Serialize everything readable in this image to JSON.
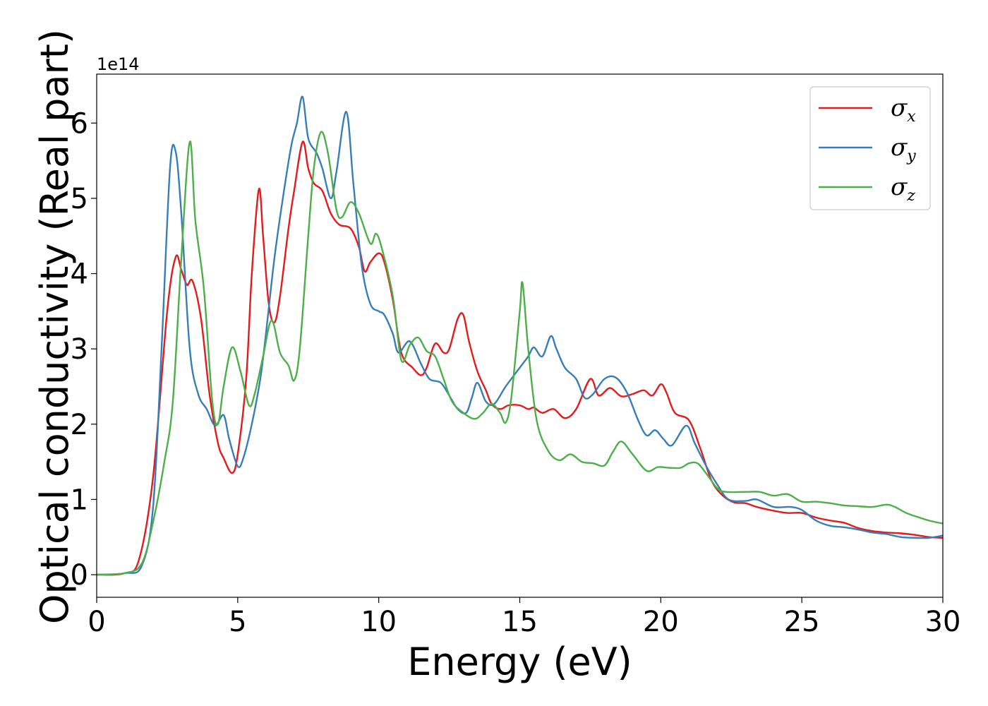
{
  "chart_data": {
    "type": "line",
    "title": "",
    "xlabel": "Energy (eV)",
    "ylabel": "Optical conductivity (Real part)",
    "y_offset_text": "1e14",
    "xlim": [
      0,
      30
    ],
    "ylim": [
      -0.3,
      6.65
    ],
    "x_ticks": [
      0,
      5,
      10,
      15,
      20,
      25,
      30
    ],
    "y_ticks": [
      0,
      1,
      2,
      3,
      4,
      5,
      6
    ],
    "grid": false,
    "legend_position": "top-right",
    "series": [
      {
        "name": "σx",
        "symbol": "σ",
        "subscript": "x",
        "color": "#e41a1c",
        "points": [
          [
            0,
            0
          ],
          [
            1,
            0.02
          ],
          [
            1.5,
            0.2
          ],
          [
            2,
            1.3
          ],
          [
            2.5,
            3.5
          ],
          [
            2.8,
            4.22
          ],
          [
            3,
            4.05
          ],
          [
            3.2,
            3.85
          ],
          [
            3.4,
            3.9
          ],
          [
            3.7,
            3.4
          ],
          [
            4,
            2.4
          ],
          [
            4.3,
            1.75
          ],
          [
            4.5,
            1.55
          ],
          [
            4.8,
            1.35
          ],
          [
            5,
            1.6
          ],
          [
            5.3,
            2.6
          ],
          [
            5.5,
            4.0
          ],
          [
            5.75,
            5.12
          ],
          [
            5.9,
            4.5
          ],
          [
            6.1,
            3.6
          ],
          [
            6.3,
            3.35
          ],
          [
            6.5,
            3.7
          ],
          [
            6.8,
            4.6
          ],
          [
            7.0,
            5.1
          ],
          [
            7.3,
            5.75
          ],
          [
            7.5,
            5.4
          ],
          [
            7.7,
            5.2
          ],
          [
            8,
            5.1
          ],
          [
            8.3,
            4.8
          ],
          [
            8.6,
            4.65
          ],
          [
            9,
            4.6
          ],
          [
            9.3,
            4.35
          ],
          [
            9.5,
            4.03
          ],
          [
            9.7,
            4.15
          ],
          [
            10,
            4.27
          ],
          [
            10.2,
            4.15
          ],
          [
            10.5,
            3.65
          ],
          [
            10.8,
            2.95
          ],
          [
            11.2,
            2.75
          ],
          [
            11.5,
            2.65
          ],
          [
            11.7,
            2.75
          ],
          [
            12,
            3.07
          ],
          [
            12.3,
            2.95
          ],
          [
            12.5,
            3.0
          ],
          [
            12.8,
            3.4
          ],
          [
            13,
            3.45
          ],
          [
            13.2,
            3.1
          ],
          [
            13.5,
            2.7
          ],
          [
            13.8,
            2.45
          ],
          [
            14,
            2.27
          ],
          [
            14.3,
            2.2
          ],
          [
            14.6,
            2.25
          ],
          [
            15,
            2.25
          ],
          [
            15.3,
            2.2
          ],
          [
            15.5,
            2.22
          ],
          [
            15.8,
            2.15
          ],
          [
            16.2,
            2.2
          ],
          [
            16.6,
            2.08
          ],
          [
            17,
            2.2
          ],
          [
            17.5,
            2.6
          ],
          [
            17.8,
            2.38
          ],
          [
            18.2,
            2.48
          ],
          [
            18.6,
            2.37
          ],
          [
            19,
            2.4
          ],
          [
            19.4,
            2.45
          ],
          [
            19.7,
            2.38
          ],
          [
            20,
            2.53
          ],
          [
            20.2,
            2.42
          ],
          [
            20.5,
            2.15
          ],
          [
            21,
            2.05
          ],
          [
            21.4,
            1.68
          ],
          [
            21.8,
            1.25
          ],
          [
            22.2,
            1.05
          ],
          [
            22.6,
            0.96
          ],
          [
            23,
            0.95
          ],
          [
            23.4,
            0.9
          ],
          [
            24,
            0.85
          ],
          [
            24.5,
            0.82
          ],
          [
            25,
            0.82
          ],
          [
            25.5,
            0.76
          ],
          [
            26,
            0.72
          ],
          [
            26.5,
            0.69
          ],
          [
            27,
            0.62
          ],
          [
            27.5,
            0.58
          ],
          [
            28,
            0.56
          ],
          [
            28.5,
            0.55
          ],
          [
            29,
            0.53
          ],
          [
            29.5,
            0.5
          ],
          [
            30,
            0.49
          ]
        ]
      },
      {
        "name": "σy",
        "symbol": "σ",
        "subscript": "y",
        "color": "#377eb8",
        "points": [
          [
            0,
            0
          ],
          [
            1,
            0.02
          ],
          [
            1.6,
            0.12
          ],
          [
            2,
            0.9
          ],
          [
            2.3,
            3.0
          ],
          [
            2.6,
            5.4
          ],
          [
            2.8,
            5.62
          ],
          [
            3,
            4.8
          ],
          [
            3.3,
            3.0
          ],
          [
            3.6,
            2.4
          ],
          [
            3.9,
            2.2
          ],
          [
            4.2,
            1.98
          ],
          [
            4.5,
            2.12
          ],
          [
            4.7,
            1.8
          ],
          [
            5,
            1.44
          ],
          [
            5.2,
            1.55
          ],
          [
            5.5,
            2.0
          ],
          [
            5.8,
            2.6
          ],
          [
            6.0,
            3.2
          ],
          [
            6.3,
            4.2
          ],
          [
            6.6,
            5.0
          ],
          [
            6.9,
            5.7
          ],
          [
            7.1,
            6.0
          ],
          [
            7.3,
            6.35
          ],
          [
            7.5,
            5.8
          ],
          [
            7.8,
            5.6
          ],
          [
            8,
            5.4
          ],
          [
            8.3,
            5.0
          ],
          [
            8.5,
            5.35
          ],
          [
            8.85,
            6.15
          ],
          [
            9.1,
            5.2
          ],
          [
            9.4,
            4.1
          ],
          [
            9.7,
            3.6
          ],
          [
            10,
            3.5
          ],
          [
            10.2,
            3.45
          ],
          [
            10.5,
            3.2
          ],
          [
            10.7,
            2.95
          ],
          [
            11.1,
            3.1
          ],
          [
            11.5,
            2.8
          ],
          [
            11.8,
            2.6
          ],
          [
            12.2,
            2.55
          ],
          [
            12.5,
            2.38
          ],
          [
            12.8,
            2.2
          ],
          [
            13.1,
            2.15
          ],
          [
            13.3,
            2.35
          ],
          [
            13.5,
            2.55
          ],
          [
            13.8,
            2.3
          ],
          [
            14.1,
            2.27
          ],
          [
            14.5,
            2.5
          ],
          [
            15,
            2.75
          ],
          [
            15.3,
            2.9
          ],
          [
            15.5,
            3.02
          ],
          [
            15.8,
            2.9
          ],
          [
            16.1,
            3.17
          ],
          [
            16.3,
            3.0
          ],
          [
            16.6,
            2.75
          ],
          [
            17,
            2.6
          ],
          [
            17.3,
            2.35
          ],
          [
            17.6,
            2.4
          ],
          [
            18,
            2.6
          ],
          [
            18.4,
            2.62
          ],
          [
            18.8,
            2.42
          ],
          [
            19.2,
            2.05
          ],
          [
            19.5,
            1.85
          ],
          [
            19.8,
            1.92
          ],
          [
            20.1,
            1.8
          ],
          [
            20.4,
            1.72
          ],
          [
            20.9,
            1.98
          ],
          [
            21.2,
            1.75
          ],
          [
            21.6,
            1.45
          ],
          [
            22,
            1.2
          ],
          [
            22.4,
            1.0
          ],
          [
            23,
            0.98
          ],
          [
            23.4,
            1.0
          ],
          [
            24,
            0.9
          ],
          [
            24.6,
            0.9
          ],
          [
            25,
            0.86
          ],
          [
            25.5,
            0.72
          ],
          [
            26,
            0.65
          ],
          [
            26.5,
            0.63
          ],
          [
            27,
            0.6
          ],
          [
            27.5,
            0.56
          ],
          [
            28,
            0.54
          ],
          [
            28.5,
            0.5
          ],
          [
            29,
            0.49
          ],
          [
            29.5,
            0.49
          ],
          [
            30,
            0.52
          ]
        ]
      },
      {
        "name": "σz",
        "symbol": "σ",
        "subscript": "z",
        "color": "#4daf4a",
        "points": [
          [
            0,
            0
          ],
          [
            1,
            0.02
          ],
          [
            1.6,
            0.15
          ],
          [
            2,
            0.7
          ],
          [
            2.4,
            1.5
          ],
          [
            2.7,
            2.3
          ],
          [
            3,
            4.2
          ],
          [
            3.3,
            5.75
          ],
          [
            3.5,
            4.7
          ],
          [
            3.8,
            3.8
          ],
          [
            4.1,
            2.3
          ],
          [
            4.3,
            2.0
          ],
          [
            4.5,
            2.5
          ],
          [
            4.8,
            3.02
          ],
          [
            5.1,
            2.7
          ],
          [
            5.4,
            2.25
          ],
          [
            5.6,
            2.4
          ],
          [
            5.9,
            2.9
          ],
          [
            6.2,
            3.38
          ],
          [
            6.5,
            2.95
          ],
          [
            6.8,
            2.78
          ],
          [
            7.0,
            2.58
          ],
          [
            7.2,
            3.0
          ],
          [
            7.5,
            4.5
          ],
          [
            7.7,
            5.4
          ],
          [
            7.95,
            5.88
          ],
          [
            8.2,
            5.6
          ],
          [
            8.5,
            4.85
          ],
          [
            8.7,
            4.75
          ],
          [
            9,
            4.95
          ],
          [
            9.3,
            4.8
          ],
          [
            9.7,
            4.4
          ],
          [
            9.9,
            4.53
          ],
          [
            10.1,
            4.35
          ],
          [
            10.5,
            3.7
          ],
          [
            10.8,
            2.85
          ],
          [
            11.1,
            3.05
          ],
          [
            11.4,
            3.15
          ],
          [
            11.7,
            2.97
          ],
          [
            12,
            2.9
          ],
          [
            12.3,
            2.6
          ],
          [
            12.6,
            2.3
          ],
          [
            13,
            2.15
          ],
          [
            13.4,
            2.07
          ],
          [
            13.7,
            2.15
          ],
          [
            14,
            2.27
          ],
          [
            14.3,
            2.15
          ],
          [
            14.5,
            2.02
          ],
          [
            14.7,
            2.35
          ],
          [
            15.0,
            3.5
          ],
          [
            15.1,
            3.87
          ],
          [
            15.3,
            3.0
          ],
          [
            15.6,
            2.05
          ],
          [
            16,
            1.65
          ],
          [
            16.4,
            1.52
          ],
          [
            16.8,
            1.6
          ],
          [
            17.2,
            1.5
          ],
          [
            17.6,
            1.48
          ],
          [
            18,
            1.45
          ],
          [
            18.3,
            1.63
          ],
          [
            18.6,
            1.77
          ],
          [
            19,
            1.6
          ],
          [
            19.5,
            1.38
          ],
          [
            19.9,
            1.43
          ],
          [
            20.3,
            1.42
          ],
          [
            20.7,
            1.42
          ],
          [
            21,
            1.48
          ],
          [
            21.3,
            1.48
          ],
          [
            21.6,
            1.35
          ],
          [
            22,
            1.15
          ],
          [
            22.3,
            1.1
          ],
          [
            23,
            1.1
          ],
          [
            23.5,
            1.1
          ],
          [
            24,
            1.05
          ],
          [
            24.5,
            1.07
          ],
          [
            25,
            0.97
          ],
          [
            25.5,
            0.97
          ],
          [
            26,
            0.95
          ],
          [
            26.5,
            0.92
          ],
          [
            27,
            0.91
          ],
          [
            27.5,
            0.9
          ],
          [
            28,
            0.93
          ],
          [
            28.3,
            0.9
          ],
          [
            28.7,
            0.82
          ],
          [
            29,
            0.78
          ],
          [
            29.5,
            0.72
          ],
          [
            30,
            0.68
          ]
        ]
      }
    ]
  }
}
